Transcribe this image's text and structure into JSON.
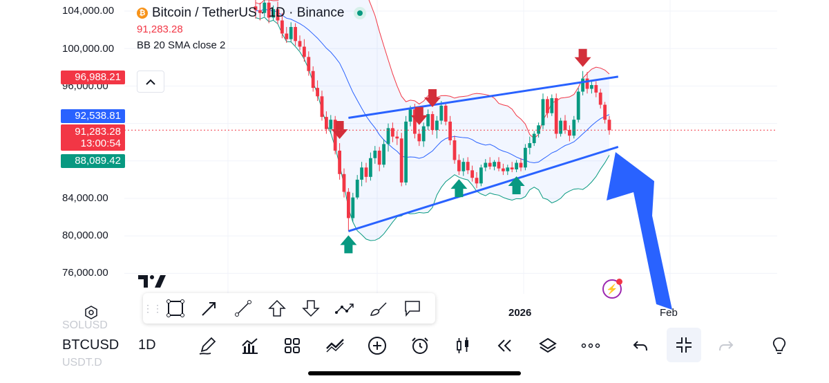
{
  "legend": {
    "title": "Bitcoin / TetherUS · 1D · Binance",
    "last_price": "91,283.28",
    "indicator": "BB 20 SMA close 2"
  },
  "price_axis": {
    "labels": [
      "104,000.00",
      "100,000.00",
      "96,000.00",
      "84,000.00",
      "80,000.00",
      "76,000.00"
    ]
  },
  "price_tags": [
    {
      "value": "96,988.21",
      "color": "#f23645"
    },
    {
      "value": "92,538.81",
      "color": "#2962ff"
    },
    {
      "value": "91,283.28",
      "color": "#f23645",
      "sub": "13:00:54"
    },
    {
      "value": "88,089.42",
      "color": "#089981"
    }
  ],
  "time_axis": {
    "labels": [
      "2026",
      "Feb"
    ]
  },
  "bottom_bar": {
    "symbol": "BTCUSD",
    "interval": "1D",
    "ghost_above": "SOLUSD",
    "ghost_below": "USDT.D"
  },
  "colors": {
    "up": "#089981",
    "down": "#f23645",
    "trendline": "#2962ff",
    "annotation": "#2962ff"
  },
  "chart_data": {
    "type": "candlestick",
    "title": "Bitcoin / TetherUS · 1D · Binance",
    "ylim": [
      73000,
      107000
    ],
    "x_ticks": [
      "2026",
      "Feb"
    ],
    "candles": [
      [
        104500,
        105800,
        103200,
        104100
      ],
      [
        104100,
        104900,
        103000,
        103800
      ],
      [
        103800,
        105300,
        103400,
        104900
      ],
      [
        104900,
        105200,
        102700,
        103300
      ],
      [
        103300,
        104600,
        103000,
        104200
      ],
      [
        104200,
        105000,
        102600,
        103000
      ],
      [
        103000,
        103800,
        101100,
        101600
      ],
      [
        101600,
        102300,
        100600,
        101000
      ],
      [
        101000,
        102800,
        100700,
        102300
      ],
      [
        102300,
        102700,
        100300,
        100800
      ],
      [
        100800,
        101400,
        99800,
        100200
      ],
      [
        100200,
        101000,
        98600,
        99100
      ],
      [
        99100,
        99700,
        97100,
        97600
      ],
      [
        97600,
        98100,
        95400,
        95800
      ],
      [
        95800,
        96600,
        94400,
        94900
      ],
      [
        94900,
        95500,
        92300,
        92700
      ],
      [
        92700,
        93300,
        90900,
        91400
      ],
      [
        91400,
        92900,
        90900,
        92400
      ],
      [
        92400,
        92800,
        88700,
        89100
      ],
      [
        89100,
        89900,
        86000,
        86600
      ],
      [
        86600,
        87200,
        84100,
        84700
      ],
      [
        84700,
        85100,
        80500,
        81900
      ],
      [
        81900,
        84600,
        81500,
        84100
      ],
      [
        84100,
        86500,
        83900,
        86000
      ],
      [
        86000,
        87900,
        85300,
        87300
      ],
      [
        87300,
        87800,
        85700,
        86300
      ],
      [
        86300,
        88900,
        85900,
        88300
      ],
      [
        88300,
        89600,
        87700,
        89100
      ],
      [
        89100,
        89500,
        86900,
        87600
      ],
      [
        87600,
        90300,
        87300,
        89800
      ],
      [
        89800,
        92000,
        89000,
        91500
      ],
      [
        91500,
        92100,
        90000,
        90600
      ],
      [
        90600,
        91200,
        89700,
        90400
      ],
      [
        90400,
        91000,
        85300,
        85700
      ],
      [
        85700,
        92800,
        85400,
        92200
      ],
      [
        92200,
        93900,
        91700,
        93500
      ],
      [
        93500,
        94100,
        90400,
        90900
      ],
      [
        90900,
        91400,
        89600,
        90100
      ],
      [
        90100,
        92100,
        89500,
        91700
      ],
      [
        91700,
        93500,
        91300,
        93000
      ],
      [
        93000,
        93300,
        90800,
        91300
      ],
      [
        91300,
        92800,
        90400,
        92300
      ],
      [
        92300,
        94400,
        91900,
        93900
      ],
      [
        93900,
        94200,
        91800,
        92200
      ],
      [
        92200,
        92800,
        89700,
        90200
      ],
      [
        90200,
        90700,
        87700,
        88100
      ],
      [
        88100,
        88700,
        86500,
        86900
      ],
      [
        86900,
        88300,
        86400,
        87900
      ],
      [
        87900,
        88400,
        86600,
        87000
      ],
      [
        87000,
        87500,
        85800,
        86200
      ],
      [
        86200,
        86800,
        85100,
        85600
      ],
      [
        85600,
        87600,
        85300,
        87300
      ],
      [
        87300,
        88200,
        86900,
        87800
      ],
      [
        87800,
        88400,
        87100,
        87400
      ],
      [
        87400,
        88100,
        87000,
        87900
      ],
      [
        87900,
        88400,
        86900,
        87200
      ],
      [
        87200,
        87700,
        86500,
        86900
      ],
      [
        86900,
        87600,
        86500,
        87300
      ],
      [
        87300,
        87900,
        86800,
        87100
      ],
      [
        87100,
        88100,
        86800,
        87800
      ],
      [
        87800,
        88300,
        86900,
        87300
      ],
      [
        87300,
        89800,
        87000,
        89400
      ],
      [
        89400,
        90600,
        88700,
        89900
      ],
      [
        89900,
        91200,
        89600,
        90900
      ],
      [
        90900,
        92100,
        90500,
        91800
      ],
      [
        91800,
        95200,
        91400,
        94600
      ],
      [
        94600,
        94900,
        92600,
        93100
      ],
      [
        93100,
        95100,
        92800,
        94700
      ],
      [
        94700,
        95200,
        90400,
        90900
      ],
      [
        90900,
        92600,
        90600,
        92300
      ],
      [
        92300,
        92900,
        90900,
        91300
      ],
      [
        91300,
        91800,
        90100,
        90700
      ],
      [
        90700,
        92800,
        90400,
        92400
      ],
      [
        92400,
        95800,
        92100,
        95400
      ],
      [
        95400,
        97600,
        95000,
        96800
      ],
      [
        96800,
        97500,
        95200,
        95700
      ],
      [
        95700,
        96600,
        95200,
        96100
      ],
      [
        96100,
        96500,
        94800,
        95300
      ],
      [
        95300,
        95700,
        93600,
        94000
      ],
      [
        94000,
        94300,
        92000,
        92400
      ],
      [
        92400,
        92800,
        90800,
        91283.28
      ]
    ],
    "bollinger": {
      "period": 20,
      "stddev": 2,
      "source": "close"
    },
    "trendlines": [
      {
        "from": [
          21,
          92600
        ],
        "to": [
          82,
          97000
        ]
      },
      {
        "from": [
          21,
          80500
        ],
        "to": [
          82,
          89500
        ]
      }
    ],
    "markers": [
      {
        "type": "sell",
        "index": 19
      },
      {
        "type": "sell",
        "index": 37
      },
      {
        "type": "sell",
        "index": 40
      },
      {
        "type": "sell",
        "index": 74
      },
      {
        "type": "buy",
        "index": 21
      },
      {
        "type": "buy",
        "index": 46
      },
      {
        "type": "buy",
        "index": 59
      }
    ],
    "last_price_line": 91283.28
  }
}
